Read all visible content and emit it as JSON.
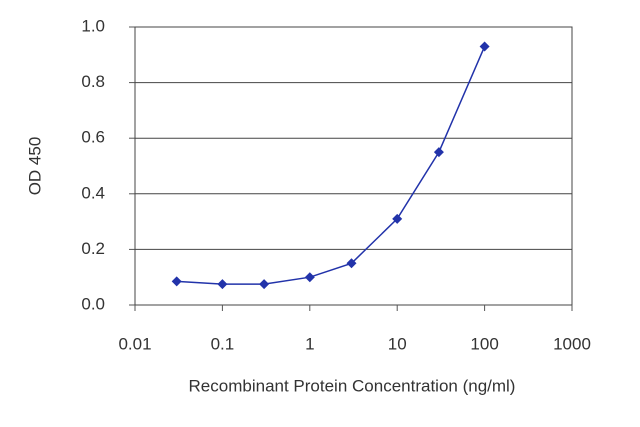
{
  "chart_data": {
    "type": "line",
    "x_label": "Recombinant Protein Concentration (ng/ml)",
    "y_label": "OD 450",
    "x": [
      0.03,
      0.1,
      0.3,
      1,
      3,
      10,
      30,
      100
    ],
    "series": [
      {
        "color": "#2233aa",
        "values": [
          0.085,
          0.075,
          0.075,
          0.1,
          0.15,
          0.31,
          0.55,
          0.93
        ]
      }
    ],
    "xlog": true,
    "xlim": [
      0.01,
      1000
    ],
    "xticks": [
      0.01,
      0.1,
      1,
      10,
      100,
      1000
    ],
    "ylim": [
      0,
      1
    ],
    "yticks": [
      {
        "value": 0,
        "label": "0.0"
      },
      0.2,
      0.4,
      0.6,
      0.8,
      {
        "value": 1,
        "label": "1.0"
      }
    ],
    "grid": true
  }
}
